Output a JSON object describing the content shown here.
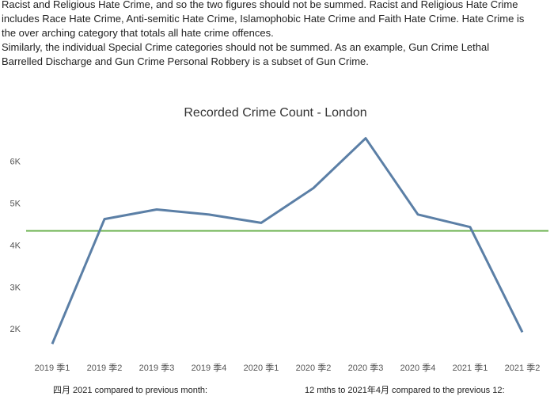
{
  "text_lines": [
    "Racist and Religious Hate Crime, and so the two figures should not be summed. Racist and Religious Hate Crime",
    "includes Race Hate Crime, Anti-semitic Hate Crime, Islamophobic Hate Crime and Faith Hate Crime. Hate Crime is",
    "the over arching category that totals all hate crime offences.",
    "Similarly, the individual Special Crime categories should not be summed. As an example, Gun Crime Lethal",
    "Barrelled Discharge and Gun Crime Personal Robbery is a subset of Gun Crime."
  ],
  "chart_data": {
    "type": "line",
    "title": "Recorded Crime Count - London",
    "categories": [
      "2019 季1",
      "2019 季2",
      "2019 季3",
      "2019 季4",
      "2020 季1",
      "2020 季2",
      "2020 季3",
      "2020 季4",
      "2021 季1",
      "2021 季2"
    ],
    "values": [
      1660,
      4640,
      4870,
      4750,
      4550,
      5380,
      6570,
      4750,
      4450,
      1940
    ],
    "color": "#5b7fa6",
    "reference_line": {
      "value": 4360,
      "color": "#6ab04c"
    },
    "ylim": [
      1400,
      6600
    ],
    "yticks": [
      {
        "value": 2000,
        "label": "2K"
      },
      {
        "value": 3000,
        "label": "3K"
      },
      {
        "value": 4000,
        "label": "4K"
      },
      {
        "value": 5000,
        "label": "5K"
      },
      {
        "value": 6000,
        "label": "6K"
      }
    ],
    "grid": false
  },
  "footer": {
    "left": "四月 2021 compared to previous month:",
    "right": "12 mths to 2021年4月 compared to the previous 12:"
  }
}
